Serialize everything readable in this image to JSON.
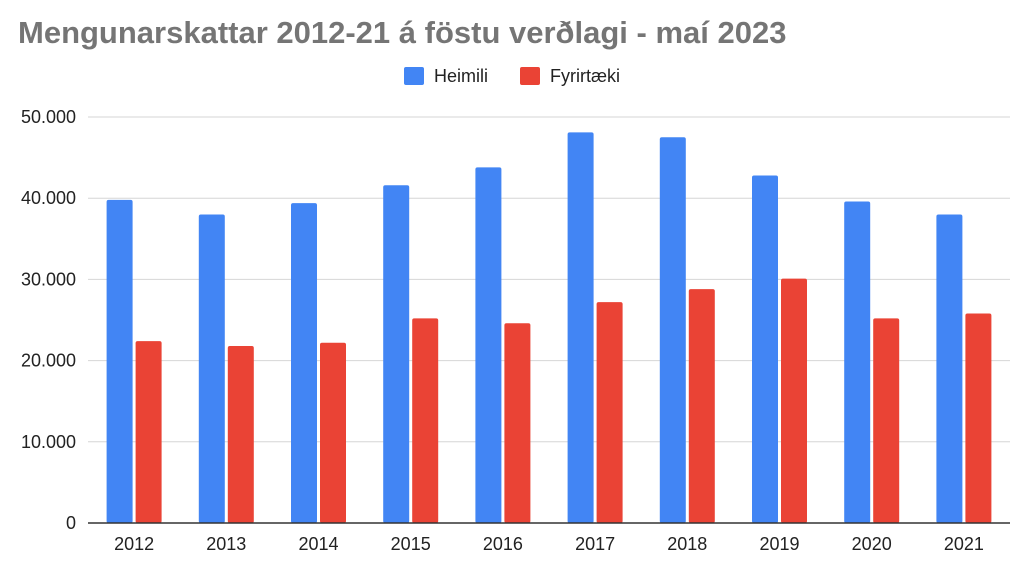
{
  "chart_data": {
    "type": "bar",
    "title": "Mengunarskattar 2012-21 á föstu verðlagi - maí 2023",
    "xlabel": "",
    "ylabel": "",
    "categories": [
      "2012",
      "2013",
      "2014",
      "2015",
      "2016",
      "2017",
      "2018",
      "2019",
      "2020",
      "2021"
    ],
    "series": [
      {
        "name": "Heimili",
        "color": "#4285f4",
        "values": [
          39800,
          38000,
          39400,
          41600,
          43800,
          48100,
          47500,
          42800,
          39600,
          38000
        ]
      },
      {
        "name": "Fyrirtæki",
        "color": "#ea4335",
        "values": [
          22400,
          21800,
          22200,
          25200,
          24600,
          27200,
          28800,
          30100,
          25200,
          25800
        ]
      }
    ],
    "ylim": [
      0,
      50000
    ],
    "yticks": [
      {
        "value": 0,
        "label": "0"
      },
      {
        "value": 10000,
        "label": "10.000"
      },
      {
        "value": 20000,
        "label": "20.000"
      },
      {
        "value": 30000,
        "label": "30.000"
      },
      {
        "value": 40000,
        "label": "40.000"
      },
      {
        "value": 50000,
        "label": "50.000"
      }
    ],
    "grid": true,
    "legend_position": "top-center"
  }
}
